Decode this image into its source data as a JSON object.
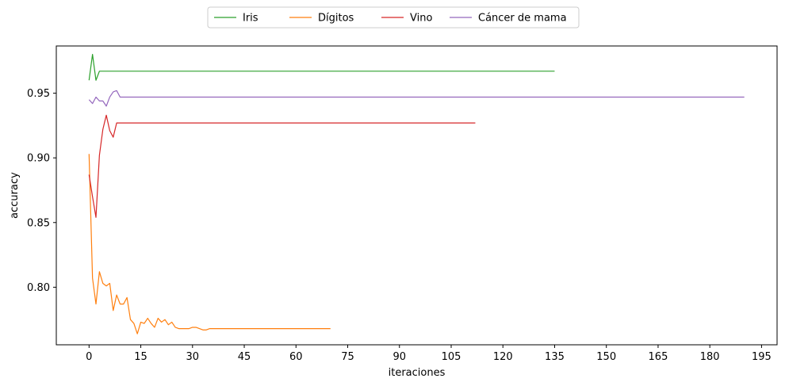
{
  "chart_data": {
    "type": "line",
    "xlabel": "iteraciones",
    "ylabel": "accuracy",
    "xlim": [
      -9.5,
      199.5
    ],
    "ylim": [
      0.7555,
      0.9865
    ],
    "xticks": [
      0,
      15,
      30,
      45,
      60,
      75,
      90,
      105,
      120,
      135,
      150,
      165,
      180,
      195
    ],
    "xtick_labels": [
      "0",
      "15",
      "30",
      "45",
      "60",
      "75",
      "90",
      "105",
      "120",
      "135",
      "150",
      "165",
      "180",
      "195"
    ],
    "yticks": [
      0.8,
      0.85,
      0.9,
      0.95
    ],
    "ytick_labels": [
      "0.80",
      "0.85",
      "0.90",
      "0.95"
    ],
    "grid": false,
    "legend_position": "top-center-outside",
    "series": [
      {
        "name": "Iris",
        "color": "#2ca02c",
        "points": [
          [
            0,
            0.96
          ],
          [
            1,
            0.98
          ],
          [
            2,
            0.96
          ],
          [
            3,
            0.967
          ],
          [
            135,
            0.967
          ]
        ]
      },
      {
        "name": "Dígitos",
        "color": "#ff7f0e",
        "points": [
          [
            0,
            0.903
          ],
          [
            1,
            0.807
          ],
          [
            2,
            0.787
          ],
          [
            3,
            0.812
          ],
          [
            4,
            0.803
          ],
          [
            5,
            0.801
          ],
          [
            6,
            0.803
          ],
          [
            7,
            0.782
          ],
          [
            8,
            0.794
          ],
          [
            9,
            0.787
          ],
          [
            10,
            0.787
          ],
          [
            11,
            0.792
          ],
          [
            12,
            0.775
          ],
          [
            13,
            0.772
          ],
          [
            14,
            0.764
          ],
          [
            15,
            0.773
          ],
          [
            16,
            0.772
          ],
          [
            17,
            0.776
          ],
          [
            18,
            0.772
          ],
          [
            19,
            0.769
          ],
          [
            20,
            0.776
          ],
          [
            21,
            0.773
          ],
          [
            22,
            0.775
          ],
          [
            23,
            0.771
          ],
          [
            24,
            0.773
          ],
          [
            25,
            0.769
          ],
          [
            26,
            0.768
          ],
          [
            27,
            0.768
          ],
          [
            28,
            0.768
          ],
          [
            29,
            0.768
          ],
          [
            30,
            0.769
          ],
          [
            31,
            0.769
          ],
          [
            32,
            0.768
          ],
          [
            33,
            0.767
          ],
          [
            34,
            0.767
          ],
          [
            35,
            0.768
          ],
          [
            40,
            0.768
          ],
          [
            50,
            0.768
          ],
          [
            60,
            0.768
          ],
          [
            70,
            0.768
          ]
        ]
      },
      {
        "name": "Vino",
        "color": "#d62728",
        "points": [
          [
            0,
            0.887
          ],
          [
            1,
            0.87
          ],
          [
            2,
            0.854
          ],
          [
            3,
            0.902
          ],
          [
            4,
            0.922
          ],
          [
            5,
            0.933
          ],
          [
            6,
            0.921
          ],
          [
            7,
            0.916
          ],
          [
            8,
            0.927
          ],
          [
            112,
            0.927
          ]
        ]
      },
      {
        "name": "Cáncer de mama",
        "color": "#9467bd",
        "points": [
          [
            0,
            0.945
          ],
          [
            1,
            0.942
          ],
          [
            2,
            0.947
          ],
          [
            3,
            0.944
          ],
          [
            4,
            0.944
          ],
          [
            5,
            0.94
          ],
          [
            6,
            0.947
          ],
          [
            7,
            0.951
          ],
          [
            8,
            0.952
          ],
          [
            9,
            0.947
          ],
          [
            10,
            0.947
          ],
          [
            190,
            0.947
          ]
        ]
      }
    ]
  }
}
